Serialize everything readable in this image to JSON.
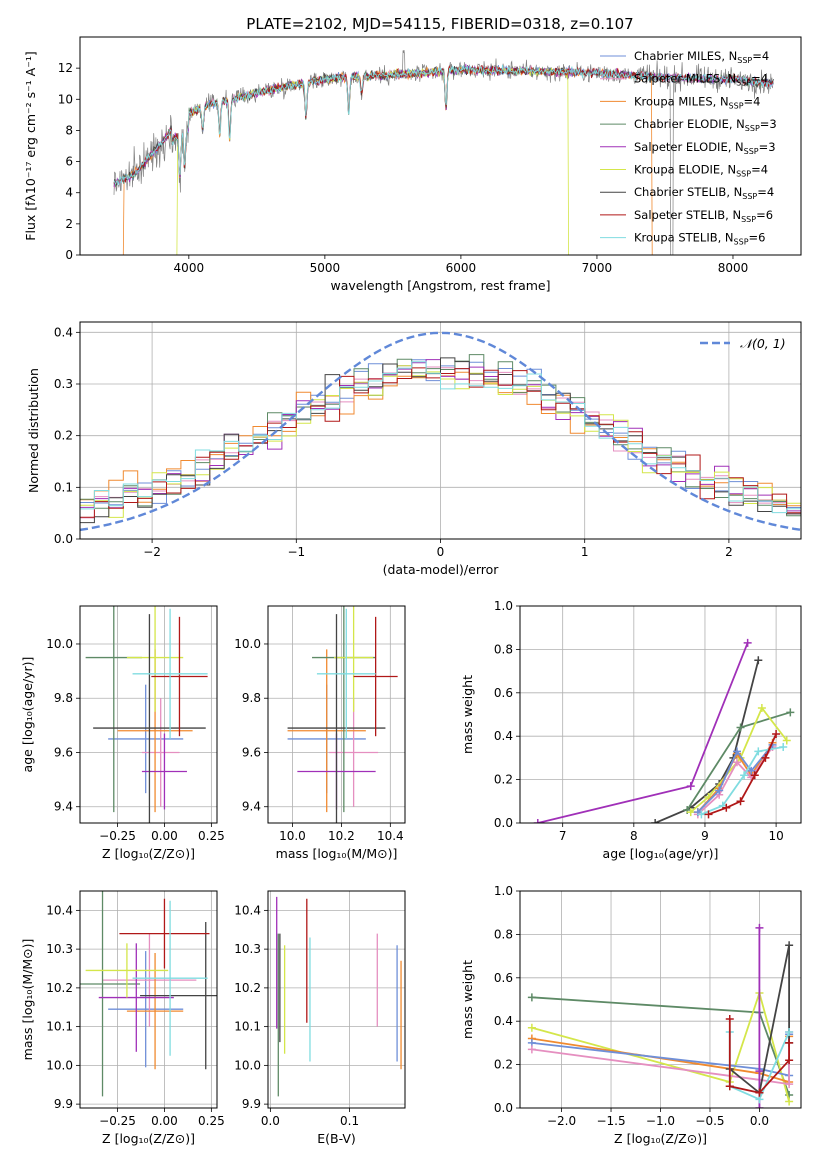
{
  "figure_title": "PLATE=2102, MJD=54115, FIBERID=0318, z=0.107",
  "colors": {
    "chabrier_miles": "#6f8fd8",
    "salpeter_miles": "#e58fc0",
    "kroupa_miles": "#f08a30",
    "chabrier_elodie": "#5e8a66",
    "salpeter_elodie": "#a030b8",
    "kroupa_elodie": "#d4e64a",
    "chabrier_stelib": "#444444",
    "salpeter_stelib": "#b01818",
    "kroupa_stelib": "#80dce0",
    "data": "#808080",
    "normal": "#6088d8",
    "grid": "#b0b0b0"
  },
  "chart_data": [
    {
      "id": "spectrum",
      "type": "line",
      "title": "PLATE=2102, MJD=54115, FIBERID=0318, z=0.107",
      "xlabel": "wavelength [Angstrom, rest frame]",
      "ylabel": "Flux [fλ10⁻¹⁷ erg cm⁻² s⁻¹ A⁻¹]",
      "xlim": [
        3200,
        8500
      ],
      "ylim": [
        0,
        14
      ],
      "xticks": [
        4000,
        5000,
        6000,
        7000,
        8000
      ],
      "yticks": [
        0,
        2,
        4,
        6,
        8,
        10,
        12
      ],
      "grid": false,
      "legend_position": "top-right",
      "legend": [
        "Chabrier MILES, N_SSP=4",
        "Salpeter MILES, N_SSP=4",
        "Kroupa MILES, N_SSP=4",
        "Chabrier ELODIE, N_SSP=3",
        "Salpeter ELODIE, N_SSP=3",
        "Kroupa ELODIE, N_SSP=4",
        "Chabrier STELIB, N_SSP=4",
        "Salpeter STELIB, N_SSP=6",
        "Kroupa STELIB, N_SSP=6"
      ],
      "continuum": {
        "x": [
          3450,
          3600,
          3800,
          3900,
          4000,
          4200,
          4400,
          4600,
          4800,
          5000,
          5300,
          5600,
          6000,
          6500,
          7000,
          7500,
          8000,
          8300
        ],
        "y": [
          4.6,
          5.2,
          7.2,
          8.4,
          9.1,
          9.8,
          10.2,
          10.6,
          11.0,
          11.3,
          11.5,
          11.6,
          11.9,
          11.8,
          11.7,
          11.4,
          11.3,
          11.0
        ]
      }
    },
    {
      "id": "residuals",
      "type": "histogram",
      "xlabel": "(data-model)/error",
      "ylabel": "Normed distribution",
      "xlim": [
        -2.5,
        2.5
      ],
      "ylim": [
        0,
        0.42
      ],
      "xticks": [
        -2,
        -1,
        0,
        1,
        2
      ],
      "yticks": [
        0.0,
        0.1,
        0.2,
        0.3,
        0.4
      ],
      "grid": true,
      "legend_position": "top-right",
      "normal_label": "𝒩(0, 1)",
      "bin_width": 0.1
    },
    {
      "id": "age_vs_Z",
      "type": "errorbar",
      "xlabel": "Z [log₁₀(Z/Z⊙)]",
      "ylabel": "age  [log₁₀(age/yr)]",
      "xlim": [
        -0.45,
        0.28
      ],
      "ylim": [
        9.34,
        10.14
      ],
      "xticks": [
        -0.25,
        0.0,
        0.25
      ],
      "yticks": [
        9.4,
        9.6,
        9.8,
        10.0
      ],
      "grid": true,
      "points": [
        {
          "c": "chabrier_miles",
          "x": -0.1,
          "xe": 0.2,
          "y": 9.65,
          "ye": 0.2
        },
        {
          "c": "salpeter_miles",
          "x": -0.02,
          "xe": 0.1,
          "y": 9.6,
          "ye": 0.2
        },
        {
          "c": "kroupa_miles",
          "x": -0.05,
          "xe": 0.2,
          "y": 9.68,
          "ye": 0.3
        },
        {
          "c": "chabrier_elodie",
          "x": -0.27,
          "xe": 0.15,
          "y": 9.95,
          "ye": 0.57
        },
        {
          "c": "salpeter_elodie",
          "x": 0.0,
          "xe": 0.12,
          "y": 9.53,
          "ye": 0.14
        },
        {
          "c": "kroupa_elodie",
          "x": -0.05,
          "xe": 0.15,
          "y": 9.95,
          "ye": 0.2
        },
        {
          "c": "chabrier_stelib",
          "x": -0.08,
          "xe": 0.3,
          "y": 9.69,
          "ye": 0.42
        },
        {
          "c": "salpeter_stelib",
          "x": 0.08,
          "xe": 0.15,
          "y": 9.88,
          "ye": 0.22
        },
        {
          "c": "kroupa_stelib",
          "x": 0.03,
          "xe": 0.2,
          "y": 9.89,
          "ye": 0.24
        }
      ]
    },
    {
      "id": "age_vs_mass",
      "type": "errorbar",
      "xlabel": "mass [log₁₀(M/M⊙)]",
      "ylabel": "",
      "xlim": [
        9.9,
        10.46
      ],
      "ylim": [
        9.34,
        10.14
      ],
      "xticks": [
        10.0,
        10.2,
        10.4
      ],
      "yticks": [
        9.4,
        9.6,
        9.8,
        10.0
      ],
      "grid": true,
      "points": [
        {
          "c": "chabrier_miles",
          "x": 10.14,
          "xe": 0.16,
          "y": 9.65,
          "ye": 0.2
        },
        {
          "c": "salpeter_miles",
          "x": 10.25,
          "xe": 0.1,
          "y": 9.6,
          "ye": 0.2
        },
        {
          "c": "kroupa_miles",
          "x": 10.14,
          "xe": 0.16,
          "y": 9.68,
          "ye": 0.3
        },
        {
          "c": "chabrier_elodie",
          "x": 10.21,
          "xe": 0.13,
          "y": 9.95,
          "ye": 0.57
        },
        {
          "c": "salpeter_elodie",
          "x": 10.18,
          "xe": 0.16,
          "y": 9.53,
          "ye": 0.14
        },
        {
          "c": "kroupa_elodie",
          "x": 10.25,
          "xe": 0.08,
          "y": 9.95,
          "ye": 0.2
        },
        {
          "c": "chabrier_stelib",
          "x": 10.18,
          "xe": 0.2,
          "y": 9.69,
          "ye": 0.42
        },
        {
          "c": "salpeter_stelib",
          "x": 10.34,
          "xe": 0.09,
          "y": 9.88,
          "ye": 0.22
        },
        {
          "c": "kroupa_stelib",
          "x": 10.22,
          "xe": 0.12,
          "y": 9.89,
          "ye": 0.24
        }
      ]
    },
    {
      "id": "weight_vs_age",
      "type": "line",
      "xlabel": "age  [log₁₀(age/yr)]",
      "ylabel": "mass weight",
      "xlim": [
        6.4,
        10.35
      ],
      "ylim": [
        0,
        1.0
      ],
      "xticks": [
        7,
        8,
        9,
        10
      ],
      "yticks": [
        0.0,
        0.2,
        0.4,
        0.6,
        0.8,
        1.0
      ],
      "grid": true,
      "series": [
        {
          "c": "salpeter_elodie",
          "x": [
            6.65,
            8.8,
            9.6
          ],
          "y": [
            0.0,
            0.17,
            0.83
          ]
        },
        {
          "c": "chabrier_stelib",
          "x": [
            8.3,
            8.8,
            9.2,
            9.4,
            9.75
          ],
          "y": [
            0.0,
            0.07,
            0.18,
            0.3,
            0.75
          ]
        },
        {
          "c": "chabrier_elodie",
          "x": [
            8.75,
            9.5,
            10.2
          ],
          "y": [
            0.06,
            0.44,
            0.51
          ]
        },
        {
          "c": "kroupa_elodie",
          "x": [
            8.8,
            9.05,
            9.5,
            9.8,
            10.15
          ],
          "y": [
            0.05,
            0.12,
            0.3,
            0.53,
            0.38
          ]
        },
        {
          "c": "kroupa_miles",
          "x": [
            8.9,
            9.2,
            9.45,
            9.65,
            9.95
          ],
          "y": [
            0.05,
            0.16,
            0.32,
            0.22,
            0.37
          ]
        },
        {
          "c": "salpeter_miles",
          "x": [
            8.9,
            9.2,
            9.45,
            9.65,
            9.95
          ],
          "y": [
            0.04,
            0.13,
            0.28,
            0.21,
            0.35
          ]
        },
        {
          "c": "chabrier_miles",
          "x": [
            8.9,
            9.2,
            9.45,
            9.65,
            9.95
          ],
          "y": [
            0.05,
            0.15,
            0.33,
            0.24,
            0.36
          ]
        },
        {
          "c": "kroupa_stelib",
          "x": [
            8.95,
            9.25,
            9.55,
            9.75,
            10.1
          ],
          "y": [
            0.04,
            0.08,
            0.22,
            0.33,
            0.35
          ]
        },
        {
          "c": "salpeter_stelib",
          "x": [
            9.05,
            9.3,
            9.5,
            9.7,
            9.85,
            10.0
          ],
          "y": [
            0.04,
            0.07,
            0.1,
            0.22,
            0.3,
            0.41
          ]
        }
      ]
    },
    {
      "id": "mass_vs_Z",
      "type": "errorbar",
      "xlabel": "Z [log₁₀(Z/Z⊙)]",
      "ylabel": "mass [log₁₀(M/M⊙)]",
      "xlim": [
        -0.45,
        0.28
      ],
      "ylim": [
        9.89,
        10.45
      ],
      "xticks": [
        -0.25,
        0.0,
        0.25
      ],
      "yticks": [
        9.9,
        10.0,
        10.1,
        10.2,
        10.3,
        10.4
      ],
      "grid": true,
      "points": [
        {
          "c": "chabrier_miles",
          "x": -0.1,
          "xe": 0.2,
          "y": 10.145,
          "ye": 0.15
        },
        {
          "c": "salpeter_miles",
          "x": -0.08,
          "xe": 0.25,
          "y": 10.22,
          "ye": 0.12
        },
        {
          "c": "kroupa_miles",
          "x": -0.05,
          "xe": 0.15,
          "y": 10.14,
          "ye": 0.15
        },
        {
          "c": "chabrier_elodie",
          "x": -0.33,
          "xe": 0.2,
          "y": 10.21,
          "ye": 0.29
        },
        {
          "c": "salpeter_elodie",
          "x": -0.15,
          "xe": 0.2,
          "y": 10.175,
          "ye": 0.14
        },
        {
          "c": "kroupa_elodie",
          "x": -0.2,
          "xe": 0.22,
          "y": 10.245,
          "ye": 0.07
        },
        {
          "c": "chabrier_stelib",
          "x": 0.22,
          "xe": 0.35,
          "y": 10.18,
          "ye": 0.19
        },
        {
          "c": "salpeter_stelib",
          "x": 0.0,
          "xe": 0.24,
          "y": 10.34,
          "ye": 0.09
        },
        {
          "c": "kroupa_stelib",
          "x": 0.03,
          "xe": 0.2,
          "y": 10.225,
          "ye": 0.2
        }
      ]
    },
    {
      "id": "mass_vs_ebv",
      "type": "errorbar",
      "xlabel": "E(B-V)",
      "ylabel": "",
      "xlim": [
        -0.003,
        0.17
      ],
      "ylim": [
        9.89,
        10.45
      ],
      "xticks": [
        0.0,
        0.1
      ],
      "yticks": [
        9.9,
        10.0,
        10.1,
        10.2,
        10.3,
        10.4
      ],
      "grid": true,
      "points": [
        {
          "c": "chabrier_miles",
          "x": 0.16,
          "xe": 0.0,
          "y": 10.16,
          "ye": 0.15
        },
        {
          "c": "salpeter_miles",
          "x": 0.135,
          "xe": 0.0,
          "y": 10.22,
          "ye": 0.12
        },
        {
          "c": "kroupa_miles",
          "x": 0.165,
          "xe": 0.0,
          "y": 10.13,
          "ye": 0.14
        },
        {
          "c": "chabrier_elodie",
          "x": 0.01,
          "xe": 0.0,
          "y": 10.13,
          "ye": 0.21
        },
        {
          "c": "salpeter_elodie",
          "x": 0.008,
          "xe": 0.0,
          "y": 10.265,
          "ye": 0.17
        },
        {
          "c": "kroupa_elodie",
          "x": 0.018,
          "xe": 0.0,
          "y": 10.17,
          "ye": 0.14
        },
        {
          "c": "chabrier_stelib",
          "x": 0.012,
          "xe": 0.0,
          "y": 10.2,
          "ye": 0.14
        },
        {
          "c": "salpeter_stelib",
          "x": 0.046,
          "xe": 0.0,
          "y": 10.27,
          "ye": 0.16
        },
        {
          "c": "kroupa_stelib",
          "x": 0.05,
          "xe": 0.0,
          "y": 10.17,
          "ye": 0.16
        }
      ]
    },
    {
      "id": "weight_vs_Z",
      "type": "line",
      "xlabel": "Z [log₁₀(Z/Z⊙)]",
      "ylabel": "mass weight",
      "xlim": [
        -2.42,
        0.42
      ],
      "ylim": [
        0,
        1.0
      ],
      "xticks": [
        -2.0,
        -1.5,
        -1.0,
        -0.5,
        0.0
      ],
      "yticks": [
        0.0,
        0.2,
        0.4,
        0.6,
        0.8,
        1.0
      ],
      "grid": true,
      "series": [
        {
          "c": "chabrier_elodie",
          "x": [
            -2.3,
            0.0,
            0.3
          ],
          "y": [
            0.51,
            0.44,
            0.06
          ]
        },
        {
          "c": "kroupa_elodie",
          "x": [
            -2.3,
            -0.3,
            0.0,
            0.3
          ],
          "y": [
            0.37,
            0.12,
            0.53,
            0.03
          ]
        },
        {
          "c": "kroupa_miles",
          "x": [
            -2.3,
            0.0,
            0.3,
            0.3
          ],
          "y": [
            0.32,
            0.16,
            0.12,
            0.33
          ]
        },
        {
          "c": "chabrier_miles",
          "x": [
            -2.3,
            0.0,
            0.3,
            0.3
          ],
          "y": [
            0.3,
            0.18,
            0.15,
            0.34
          ]
        },
        {
          "c": "salpeter_miles",
          "x": [
            -2.3,
            0.0,
            0.3,
            0.3
          ],
          "y": [
            0.27,
            0.13,
            0.11,
            0.35
          ]
        },
        {
          "c": "salpeter_elodie",
          "x": [
            0.0,
            0.0,
            0.0
          ],
          "y": [
            0.83,
            0.17,
            0.0
          ]
        },
        {
          "c": "chabrier_stelib",
          "x": [
            -0.3,
            0.0,
            0.3,
            0.3
          ],
          "y": [
            0.18,
            0.07,
            0.75,
            0.3
          ]
        },
        {
          "c": "kroupa_stelib",
          "x": [
            -0.3,
            -0.3,
            0.0,
            0.3
          ],
          "y": [
            0.35,
            0.1,
            0.04,
            0.35
          ]
        },
        {
          "c": "salpeter_stelib",
          "x": [
            -0.3,
            -0.3,
            0.0,
            0.3,
            0.3
          ],
          "y": [
            0.41,
            0.1,
            0.07,
            0.22,
            0.3
          ]
        }
      ]
    }
  ]
}
